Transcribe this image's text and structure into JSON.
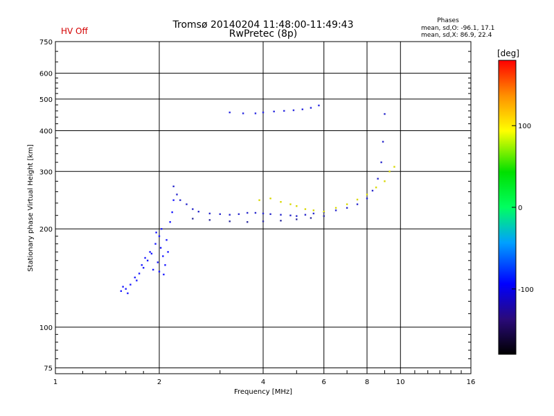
{
  "header": {
    "title_line1": "Tromsø 20140204 11:48:00-11:49:43",
    "title_line2": "RwPretec (8p)",
    "status": "HV Off",
    "status_color": "#d40000",
    "phases_title": "Phases",
    "phases_o": "mean, sd,O: -96.1, 17.1",
    "phases_x": "mean, sd,X:  86.9, 22.4"
  },
  "chart_data": {
    "type": "scatter",
    "xlabel": "Frequency [MHz]",
    "ylabel": "Stationary phase Virtual Height [km]",
    "x_scale": "log",
    "y_scale": "log",
    "xlim": [
      1,
      16
    ],
    "ylim": [
      72,
      750
    ],
    "x_ticks": [
      1,
      2,
      4,
      6,
      8,
      10,
      16
    ],
    "x_tick_labels": [
      "1",
      "2",
      "4",
      "6",
      "8",
      "10",
      "16"
    ],
    "y_ticks": [
      75,
      100,
      200,
      300,
      400,
      500,
      600,
      750
    ],
    "y_tick_labels": [
      "75",
      "100",
      "200",
      "300",
      "400",
      "500",
      "600",
      "750"
    ],
    "grid": true,
    "colorbar": {
      "label": "[deg]",
      "range": [
        -180,
        180
      ],
      "ticks": [
        100,
        0,
        -100
      ],
      "tick_labels": [
        "100",
        "0",
        "-100"
      ]
    },
    "series": [
      {
        "color": "#1a1aff",
        "points": [
          [
            1.55,
            129
          ],
          [
            1.6,
            131
          ],
          [
            1.65,
            135
          ],
          [
            1.7,
            142
          ],
          [
            1.75,
            146
          ],
          [
            1.8,
            152
          ],
          [
            1.85,
            160
          ],
          [
            1.9,
            168
          ],
          [
            1.95,
            180
          ],
          [
            2.0,
            190
          ],
          [
            2.02,
            175
          ],
          [
            2.05,
            165
          ],
          [
            1.92,
            150
          ],
          [
            2.0,
            148
          ],
          [
            2.08,
            155
          ],
          [
            1.88,
            170
          ],
          [
            1.82,
            163
          ],
          [
            1.96,
            195
          ],
          [
            2.03,
            200
          ],
          [
            2.1,
            185
          ],
          [
            2.12,
            170
          ],
          [
            1.98,
            158
          ],
          [
            2.06,
            145
          ],
          [
            1.78,
            155
          ],
          [
            1.72,
            139
          ],
          [
            1.62,
            127
          ],
          [
            1.57,
            133
          ],
          [
            2.15,
            210
          ],
          [
            2.18,
            225
          ],
          [
            2.2,
            245
          ]
        ]
      },
      {
        "color": "#2a2acc",
        "points": [
          [
            2.2,
            270
          ],
          [
            2.25,
            255
          ],
          [
            2.3,
            245
          ],
          [
            2.4,
            238
          ],
          [
            2.5,
            230
          ],
          [
            2.6,
            226
          ],
          [
            2.8,
            223
          ],
          [
            3.0,
            222
          ],
          [
            3.2,
            221
          ],
          [
            3.4,
            222
          ],
          [
            3.6,
            224
          ],
          [
            3.8,
            224
          ],
          [
            4.0,
            223
          ],
          [
            4.2,
            222
          ],
          [
            4.5,
            221
          ],
          [
            4.8,
            220
          ],
          [
            5.0,
            219
          ],
          [
            5.3,
            221
          ],
          [
            5.6,
            223
          ],
          [
            6.0,
            225
          ],
          [
            6.5,
            228
          ],
          [
            7.0,
            232
          ],
          [
            7.5,
            238
          ],
          [
            8.0,
            248
          ],
          [
            8.3,
            262
          ],
          [
            8.6,
            285
          ],
          [
            8.8,
            320
          ],
          [
            8.9,
            370
          ],
          [
            9.0,
            450
          ]
        ]
      },
      {
        "color": "#3030a0",
        "points": [
          [
            2.5,
            215
          ],
          [
            2.8,
            213
          ],
          [
            3.2,
            211
          ],
          [
            3.6,
            210
          ],
          [
            4.0,
            211
          ],
          [
            4.5,
            212
          ],
          [
            5.0,
            214
          ],
          [
            5.5,
            216
          ],
          [
            6.0,
            219
          ]
        ]
      },
      {
        "color": "#d8d800",
        "points": [
          [
            3.9,
            245
          ],
          [
            4.2,
            248
          ],
          [
            4.5,
            242
          ],
          [
            4.8,
            238
          ],
          [
            5.0,
            235
          ],
          [
            5.3,
            230
          ],
          [
            5.6,
            228
          ],
          [
            6.0,
            226
          ],
          [
            6.5,
            232
          ],
          [
            7.0,
            238
          ],
          [
            7.5,
            246
          ],
          [
            8.0,
            255
          ],
          [
            8.5,
            268
          ],
          [
            9.0,
            280
          ],
          [
            9.3,
            300
          ],
          [
            9.6,
            310
          ]
        ]
      },
      {
        "color": "#2a2ae0",
        "points": [
          [
            3.2,
            455
          ],
          [
            3.5,
            452
          ],
          [
            3.8,
            452
          ],
          [
            4.0,
            455
          ],
          [
            4.3,
            458
          ],
          [
            4.6,
            460
          ],
          [
            4.9,
            462
          ],
          [
            5.2,
            465
          ],
          [
            5.5,
            470
          ],
          [
            5.8,
            478
          ]
        ]
      }
    ]
  }
}
